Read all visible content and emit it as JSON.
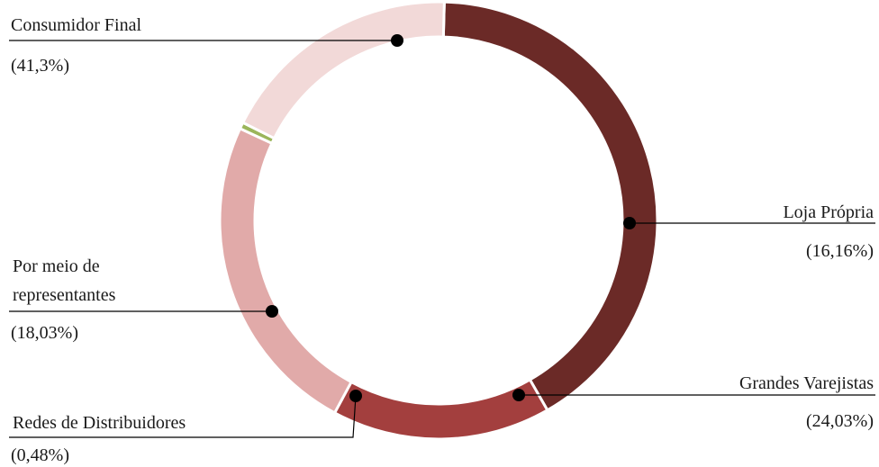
{
  "chart_data": {
    "type": "donut",
    "title": "",
    "series": [
      {
        "category": "Consumidor Final",
        "percent_label": "(41,3%)",
        "value": 41.3,
        "color": "#6b2a27"
      },
      {
        "category": "Loja Própria",
        "percent_label": "(16,16%)",
        "value": 16.16,
        "color": "#a33f3e"
      },
      {
        "category": "Grandes Varejistas",
        "percent_label": "(24,03%)",
        "value": 24.03,
        "color": "#e1aaa9"
      },
      {
        "category": "Redes de Distribuidores",
        "percent_label": "(0,48%)",
        "value": 0.48,
        "color": "#9bb55a"
      },
      {
        "category": "Por meio de representantes",
        "category_lines": [
          "Por meio de",
          "representantes"
        ],
        "percent_label": "(18,03%)",
        "value": 18.03,
        "color": "#f2d9d8"
      }
    ]
  }
}
